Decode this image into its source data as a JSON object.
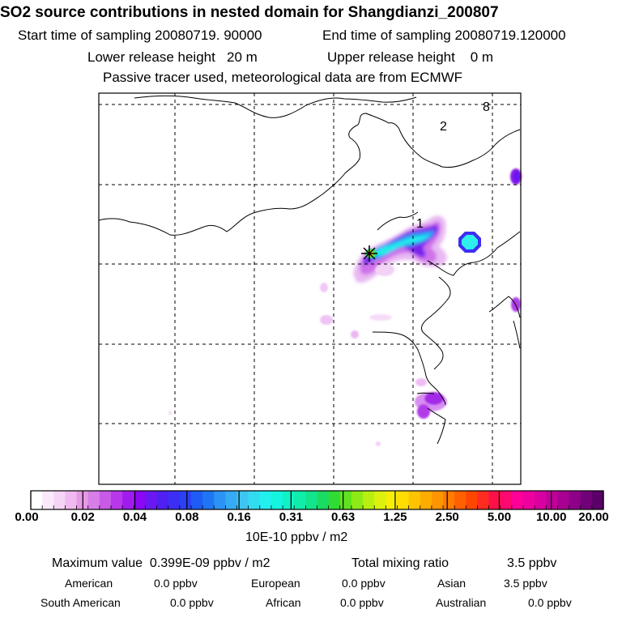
{
  "title": "SO2 source contributions in nested domain for Shangdianzi_200807",
  "sampling": {
    "start": "Start time of sampling 20080719. 90000",
    "end": "End time of sampling 20080719.120000"
  },
  "release": {
    "lower": "Lower release height   20 m",
    "upper": "Upper release height    0 m"
  },
  "note": "Passive tracer used, meteorological data are from ECMWF",
  "map": {
    "labels": [
      "8",
      "2",
      "1"
    ],
    "station_marker": "station-star"
  },
  "colorbar": {
    "ticks": [
      "0.00",
      "0.02",
      "0.04",
      "0.08",
      "0.16",
      "0.31",
      "0.63",
      "1.25",
      "2.50",
      "5.00",
      "10.00",
      "20.00"
    ],
    "colors": [
      "#ffffff",
      "#fbe9fb",
      "#f6d4f6",
      "#f0b9f0",
      "#e59ae6",
      "#d77ee8",
      "#c95ae8",
      "#b737ea",
      "#a01cee",
      "#8a08f4",
      "#6a18f2",
      "#5020f2",
      "#3c2ff4",
      "#2a40f6",
      "#1f5cf5",
      "#1f76f5",
      "#2b93f5",
      "#36abf3",
      "#3ec6f2",
      "#32dcf0",
      "#22f0ee",
      "#14f4de",
      "#10f2c5",
      "#10eca9",
      "#12e48b",
      "#1adc62",
      "#30dc34",
      "#60e21f",
      "#8eea16",
      "#b8ef10",
      "#dcf20c",
      "#f6ee06",
      "#ffdc02",
      "#ffc400",
      "#ffac00",
      "#ff9600",
      "#ff7c00",
      "#ff6000",
      "#ff4600",
      "#ff2c20",
      "#ff1048",
      "#ff0870",
      "#ff0098",
      "#ee00a0",
      "#d800a0",
      "#c0009a",
      "#a80092",
      "#8e0088",
      "#720078",
      "#5a0068"
    ],
    "units": "10E-10 ppbv / m2"
  },
  "summary": {
    "max_label": "Maximum value  0.399E-09 ppbv / m2",
    "total_label": "Total mixing ratio",
    "total_value": "3.5 ppbv",
    "american_label": "American",
    "american_value": "0.0 ppbv",
    "european_label": "European",
    "european_value": "0.0 ppbv",
    "asian_label": "Asian",
    "asian_value": "3.5 ppbv",
    "south_american_label": "South American",
    "south_american_value": "0.0 ppbv",
    "african_label": "African",
    "african_value": "0.0 ppbv",
    "australian_label": "Australian",
    "australian_value": "0.0 ppbv"
  }
}
